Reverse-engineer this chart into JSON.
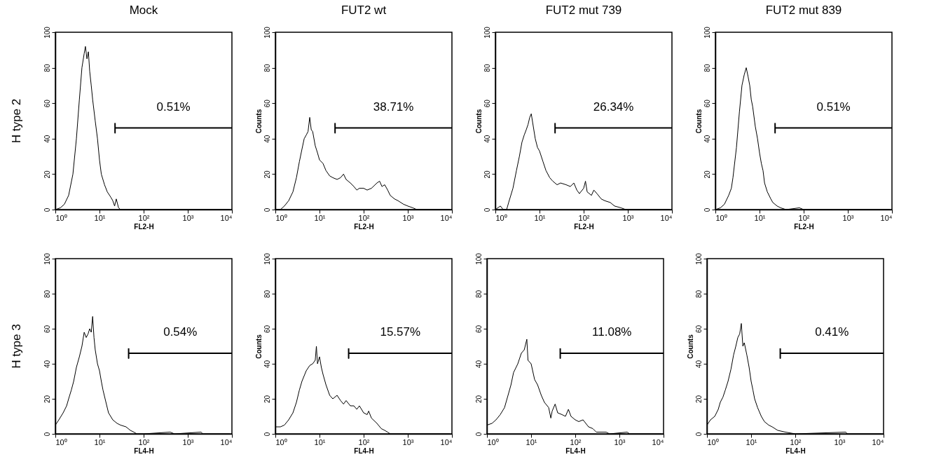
{
  "chart_data": [
    {
      "type": "line",
      "title": "Mock",
      "xlabel": "FL2-H",
      "annotations": [
        "H type 2",
        "0.51%"
      ],
      "xlim": [
        1,
        10000
      ],
      "ylim": [
        0,
        100
      ],
      "log": "x",
      "xticks": [
        {
          "value": 1,
          "label": "10⁰"
        },
        {
          "value": 10,
          "label": "10¹"
        },
        {
          "value": 100,
          "label": "10²"
        },
        {
          "value": 1000,
          "label": "10³"
        },
        {
          "value": 10000,
          "label": "10⁴"
        }
      ],
      "yticks": [
        0,
        20,
        40,
        60,
        80,
        100
      ],
      "series": [
        {
          "color": "#000000",
          "x": [
            1,
            1.3,
            1.6,
            2,
            2.5,
            3,
            3.5,
            4,
            4.5,
            4.8,
            5.2,
            5.6,
            6,
            6.5,
            7,
            8,
            9,
            10,
            11,
            13,
            15,
            18,
            20,
            22,
            24,
            27,
            30,
            40,
            80,
            100,
            9000
          ],
          "values": [
            0,
            1,
            3,
            8,
            20,
            40,
            62,
            80,
            88,
            92,
            85,
            89,
            78,
            70,
            62,
            50,
            40,
            28,
            20,
            14,
            10,
            7,
            5,
            2,
            6,
            1,
            0,
            0,
            0,
            0,
            0
          ]
        }
      ]
    },
    {
      "type": "line",
      "title": "FUT2 wt",
      "xlabel": "FL2-H",
      "ylabel": "Counts",
      "annotations": [
        "38.71%"
      ],
      "xlim": [
        1,
        10000
      ],
      "ylim": [
        0,
        100
      ],
      "log": "x",
      "xticks": [
        {
          "value": 1,
          "label": "10⁰"
        },
        {
          "value": 10,
          "label": "10¹"
        },
        {
          "value": 100,
          "label": "10²"
        },
        {
          "value": 1000,
          "label": "10³"
        },
        {
          "value": 10000,
          "label": "10⁴"
        }
      ],
      "yticks": [
        0,
        20,
        40,
        60,
        80,
        100
      ],
      "series": [
        {
          "color": "#000000",
          "x": [
            1,
            1.3,
            1.6,
            2,
            2.5,
            3,
            3.5,
            4,
            4.5,
            5,
            5.5,
            6,
            6.5,
            7,
            8,
            9,
            10,
            12,
            14,
            17,
            20,
            25,
            30,
            35,
            40,
            50,
            60,
            70,
            80,
            100,
            120,
            150,
            200,
            230,
            260,
            300,
            350,
            400,
            500,
            600,
            800,
            1000,
            1300,
            1600,
            2000,
            9000
          ],
          "values": [
            0,
            0,
            2,
            5,
            10,
            18,
            27,
            34,
            40,
            42,
            44,
            52,
            45,
            44,
            36,
            32,
            28,
            26,
            22,
            19,
            18,
            17,
            18,
            20,
            17,
            15,
            13,
            11,
            12,
            12,
            11,
            12,
            15,
            16,
            13,
            14,
            11,
            8,
            6,
            5,
            3,
            2,
            1,
            0,
            0,
            0
          ]
        }
      ]
    },
    {
      "type": "line",
      "title": "FUT2 mut 739",
      "xlabel": "FL2-H",
      "ylabel": "Counts",
      "annotations": [
        "26.34%"
      ],
      "xlim": [
        1,
        10000
      ],
      "ylim": [
        0,
        100
      ],
      "log": "x",
      "xticks": [
        {
          "value": 1,
          "label": "10⁰"
        },
        {
          "value": 10,
          "label": "10¹"
        },
        {
          "value": 100,
          "label": "10²"
        },
        {
          "value": 1000,
          "label": "10³"
        },
        {
          "value": 10000,
          "label": "10⁴"
        }
      ],
      "yticks": [
        0,
        20,
        40,
        60,
        80,
        100
      ],
      "series": [
        {
          "color": "#000000",
          "x": [
            1,
            1.3,
            1.5,
            1.8,
            2,
            2.5,
            3,
            3.5,
            4,
            4.5,
            5,
            5.5,
            6,
            6.5,
            7,
            8,
            9,
            10,
            12,
            14,
            17,
            20,
            25,
            30,
            40,
            50,
            60,
            70,
            80,
            100,
            110,
            120,
            150,
            170,
            200,
            250,
            300,
            400,
            500,
            700,
            900,
            1000,
            9000
          ],
          "values": [
            0,
            2,
            0,
            0,
            4,
            12,
            22,
            30,
            38,
            42,
            45,
            48,
            52,
            54,
            49,
            40,
            35,
            33,
            27,
            22,
            18,
            16,
            14,
            15,
            14,
            13,
            15,
            11,
            9,
            12,
            16,
            10,
            8,
            11,
            9,
            6,
            5,
            4,
            2,
            1,
            0,
            0,
            0
          ]
        }
      ]
    },
    {
      "type": "line",
      "title": "FUT2 mut 839",
      "xlabel": "FL2-H",
      "ylabel": "Counts",
      "annotations": [
        "0.51%"
      ],
      "xlim": [
        1,
        10000
      ],
      "ylim": [
        0,
        100
      ],
      "log": "x",
      "xticks": [
        {
          "value": 1,
          "label": "10⁰"
        },
        {
          "value": 10,
          "label": "10¹"
        },
        {
          "value": 100,
          "label": "10²"
        },
        {
          "value": 1000,
          "label": "10³"
        },
        {
          "value": 10000,
          "label": "10⁴"
        }
      ],
      "yticks": [
        0,
        20,
        40,
        60,
        80,
        100
      ],
      "series": [
        {
          "color": "#000000",
          "x": [
            1,
            1.3,
            1.6,
            2,
            2.3,
            2.5,
            3,
            3.5,
            4,
            4.5,
            5,
            5.5,
            6,
            6.5,
            7,
            8,
            9,
            10,
            11,
            12,
            13,
            15,
            18,
            20,
            25,
            30,
            40,
            80,
            100,
            9000
          ],
          "values": [
            0,
            1,
            3,
            8,
            12,
            18,
            35,
            55,
            70,
            76,
            80,
            75,
            70,
            62,
            58,
            47,
            40,
            32,
            26,
            22,
            15,
            10,
            6,
            4,
            2,
            1,
            0,
            1,
            0,
            0
          ]
        }
      ]
    },
    {
      "type": "line",
      "xlabel": "FL4-H",
      "annotations": [
        "H type 3",
        "0.54%"
      ],
      "xlim": [
        1,
        10000
      ],
      "ylim": [
        0,
        100
      ],
      "log": "x",
      "xticks": [
        {
          "value": 1,
          "label": "10⁰"
        },
        {
          "value": 10,
          "label": "10¹"
        },
        {
          "value": 100,
          "label": "10²"
        },
        {
          "value": 1000,
          "label": "10³"
        },
        {
          "value": 10000,
          "label": "10⁴"
        }
      ],
      "yticks": [
        0,
        20,
        40,
        60,
        80,
        100
      ],
      "series": [
        {
          "color": "#000000",
          "x": [
            1,
            1.2,
            1.5,
            1.8,
            2,
            2.3,
            2.6,
            3,
            3.5,
            4,
            4.5,
            5,
            5.5,
            6,
            6.5,
            7,
            7.5,
            8,
            9,
            10,
            11,
            12,
            14,
            16,
            20,
            25,
            30,
            40,
            50,
            60,
            70,
            100,
            400,
            500,
            2000,
            2200,
            9000
          ],
          "values": [
            5,
            8,
            12,
            16,
            20,
            25,
            30,
            38,
            44,
            50,
            58,
            55,
            57,
            60,
            58,
            67,
            55,
            48,
            40,
            36,
            30,
            25,
            18,
            12,
            8,
            6,
            5,
            4,
            2,
            1,
            0,
            0,
            1,
            0,
            1,
            0,
            0
          ]
        }
      ]
    },
    {
      "type": "line",
      "xlabel": "FL4-H",
      "ylabel": "Counts",
      "annotations": [
        "15.57%"
      ],
      "xlim": [
        1,
        10000
      ],
      "ylim": [
        0,
        100
      ],
      "log": "x",
      "xticks": [
        {
          "value": 1,
          "label": "10⁰"
        },
        {
          "value": 10,
          "label": "10¹"
        },
        {
          "value": 100,
          "label": "10²"
        },
        {
          "value": 1000,
          "label": "10³"
        },
        {
          "value": 10000,
          "label": "10⁴"
        }
      ],
      "yticks": [
        0,
        20,
        40,
        60,
        80,
        100
      ],
      "series": [
        {
          "color": "#000000",
          "x": [
            1,
            1.3,
            1.6,
            2,
            2.5,
            3,
            3.5,
            4,
            5,
            6,
            7,
            8,
            8.5,
            9,
            10,
            11,
            12,
            14,
            17,
            20,
            25,
            30,
            35,
            40,
            50,
            60,
            70,
            80,
            100,
            120,
            130,
            150,
            200,
            250,
            300,
            350,
            400,
            600,
            9000
          ],
          "values": [
            4,
            4,
            5,
            8,
            12,
            18,
            25,
            30,
            36,
            39,
            40,
            42,
            50,
            40,
            44,
            38,
            34,
            28,
            22,
            20,
            22,
            19,
            17,
            19,
            16,
            16,
            14,
            16,
            12,
            11,
            13,
            9,
            6,
            3,
            2,
            1,
            0,
            0,
            0
          ]
        }
      ]
    },
    {
      "type": "line",
      "xlabel": "FL4-H",
      "annotations": [
        "11.08%"
      ],
      "xlim": [
        1,
        10000
      ],
      "ylim": [
        0,
        100
      ],
      "log": "x",
      "xticks": [
        {
          "value": 1,
          "label": "10⁰"
        },
        {
          "value": 10,
          "label": "10¹"
        },
        {
          "value": 100,
          "label": "10²"
        },
        {
          "value": 1000,
          "label": "10³"
        },
        {
          "value": 10000,
          "label": "10⁴"
        }
      ],
      "yticks": [
        0,
        20,
        40,
        60,
        80,
        100
      ],
      "series": [
        {
          "color": "#000000",
          "x": [
            1,
            1.3,
            1.6,
            2,
            2.5,
            3,
            3.5,
            4,
            5,
            6,
            7,
            8,
            8.5,
            10,
            12,
            14,
            17,
            20,
            25,
            28,
            30,
            35,
            40,
            50,
            60,
            70,
            80,
            100,
            120,
            150,
            200,
            250,
            300,
            500,
            600,
            1500,
            1700,
            9000
          ],
          "values": [
            5,
            6,
            8,
            11,
            15,
            22,
            28,
            35,
            40,
            46,
            48,
            54,
            42,
            40,
            31,
            28,
            22,
            18,
            15,
            9,
            13,
            17,
            12,
            11,
            10,
            14,
            10,
            8,
            7,
            8,
            4,
            3,
            1,
            1,
            0,
            1,
            0,
            0
          ]
        }
      ]
    },
    {
      "type": "line",
      "xlabel": "FL4-H",
      "ylabel": "Counts",
      "annotations": [
        "0.41%"
      ],
      "xlim": [
        1,
        10000
      ],
      "ylim": [
        0,
        100
      ],
      "log": "x",
      "xticks": [
        {
          "value": 1,
          "label": "10⁰"
        },
        {
          "value": 10,
          "label": "10¹"
        },
        {
          "value": 100,
          "label": "10²"
        },
        {
          "value": 1000,
          "label": "10³"
        },
        {
          "value": 10000,
          "label": "10⁴"
        }
      ],
      "yticks": [
        0,
        20,
        40,
        60,
        80,
        100
      ],
      "series": [
        {
          "color": "#000000",
          "x": [
            1,
            1.2,
            1.5,
            1.8,
            2,
            2.3,
            2.6,
            3,
            3.5,
            4,
            4.5,
            5,
            5.5,
            6,
            6.5,
            7,
            8,
            9,
            10,
            11,
            12,
            14,
            17,
            20,
            25,
            30,
            40,
            60,
            100,
            1400,
            1500,
            9000
          ],
          "values": [
            5,
            8,
            10,
            14,
            18,
            21,
            25,
            30,
            37,
            45,
            50,
            55,
            57,
            63,
            50,
            52,
            45,
            38,
            30,
            25,
            20,
            15,
            10,
            7,
            5,
            4,
            2,
            1,
            0,
            1,
            0,
            0
          ]
        }
      ]
    }
  ]
}
